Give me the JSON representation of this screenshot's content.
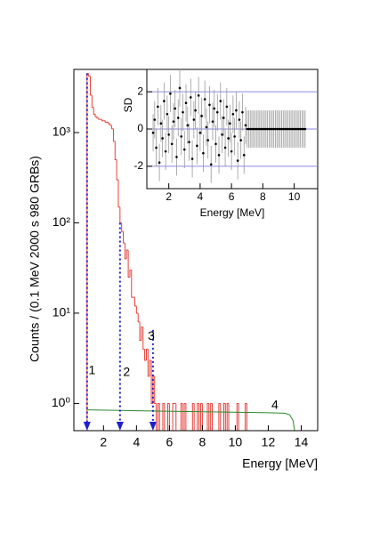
{
  "chart_data": [
    {
      "type": "histogram",
      "xlabel": "Energy [MeV]",
      "ylabel": "Counts / (0.1 MeV 2000 s 980 GRBs)",
      "bins": [
        1,
        1.1,
        1.2,
        1.3,
        1.4,
        1.5,
        1.6,
        1.7,
        1.8,
        1.9,
        2,
        2.1,
        2.2,
        2.3,
        2.4,
        2.5,
        2.6,
        2.7,
        2.8,
        2.9,
        3,
        3.1,
        3.2,
        3.3,
        3.4,
        3.5,
        3.6,
        3.7,
        3.8,
        3.9,
        4,
        4.1,
        4.2,
        4.3,
        4.4,
        4.5,
        4.6,
        4.7,
        4.8,
        4.9,
        5,
        5.1,
        5.2,
        5.3,
        5.4,
        5.5,
        5.6,
        5.7,
        5.8,
        5.9,
        6,
        6.1,
        6.2,
        6.3,
        6.4,
        6.5,
        6.6,
        6.7,
        6.8,
        6.9,
        7,
        7.1,
        7.2,
        7.3,
        7.4,
        7.5,
        7.6,
        7.7,
        7.8,
        7.9,
        8,
        8.1,
        8.2,
        8.3,
        8.4,
        8.5,
        8.6,
        8.7,
        8.8,
        8.9,
        9,
        9.1,
        9.2,
        9.3,
        9.4,
        9.5,
        9.6,
        9.7,
        9.8,
        9.9,
        10,
        10.1,
        10.2,
        10.3,
        10.4,
        10.5,
        10.6,
        10.7,
        10.8
      ],
      "values": [
        4500,
        4200,
        2600,
        1900,
        1600,
        1500,
        1450,
        1400,
        1400,
        1350,
        1350,
        1300,
        1300,
        1250,
        1200,
        1100,
        800,
        500,
        300,
        150,
        100,
        80,
        60,
        40,
        50,
        25,
        30,
        15,
        15,
        12,
        10,
        8,
        5,
        7,
        4,
        3,
        4,
        2,
        3,
        1,
        2,
        1,
        0,
        1,
        0,
        0,
        1,
        0,
        0,
        1,
        0,
        0,
        1,
        1,
        0,
        0,
        0,
        1,
        0,
        1,
        0,
        0,
        0,
        0,
        1,
        0,
        0,
        1,
        0,
        1,
        0,
        0,
        0,
        1,
        0,
        1,
        0,
        0,
        0,
        0,
        1,
        0,
        0,
        1,
        0,
        1,
        0,
        0,
        0,
        0,
        0,
        1,
        0,
        0,
        0,
        0,
        1,
        0
      ],
      "color": "#e8403a",
      "line": {
        "color": "#2a8a2a",
        "x": [
          1,
          4,
          8,
          12,
          13,
          13.3,
          13.5,
          13.6
        ],
        "values": [
          0.85,
          0.83,
          0.81,
          0.79,
          0.78,
          0.75,
          0.65,
          0.5
        ]
      },
      "thresholds": {
        "color": "#1f1fd0",
        "x": [
          1,
          3,
          5
        ],
        "values": [
          4500,
          100,
          6.5
        ]
      },
      "annotations": [
        {
          "text": "1",
          "x": 1.3,
          "y": 2.3
        },
        {
          "text": "2",
          "x": 3.4,
          "y": 2.2
        },
        {
          "text": "3",
          "x": 4.9,
          "y": 5.5
        },
        {
          "text": "4",
          "x": 12.4,
          "y": 0.95
        }
      ],
      "log_y": true,
      "xlim": [
        0.2,
        15
      ],
      "ylim": [
        0.5,
        5000
      ],
      "xticks": [
        2,
        4,
        6,
        8,
        10,
        12,
        14
      ],
      "yticks": [
        {
          "value": 1,
          "label": "10⁰"
        },
        {
          "value": 10,
          "label": "10¹"
        },
        {
          "value": 100,
          "label": "10²"
        },
        {
          "value": 1000,
          "label": "10³"
        }
      ]
    },
    {
      "type": "scatter",
      "xlabel": "Energy [MeV]",
      "ylabel": "SD",
      "x": [
        1,
        1.1,
        1.2,
        1.3,
        1.4,
        1.5,
        1.6,
        1.7,
        1.8,
        1.9,
        2,
        2.1,
        2.2,
        2.3,
        2.4,
        2.5,
        2.6,
        2.7,
        2.8,
        2.9,
        3,
        3.1,
        3.2,
        3.3,
        3.4,
        3.5,
        3.6,
        3.7,
        3.8,
        3.9,
        4,
        4.1,
        4.2,
        4.3,
        4.4,
        4.5,
        4.6,
        4.7,
        4.8,
        4.9,
        5,
        5.1,
        5.2,
        5.3,
        5.4,
        5.5,
        5.6,
        5.7,
        5.8,
        5.9,
        6,
        6.1,
        6.2,
        6.3,
        6.4,
        6.5,
        6.6,
        6.7,
        6.8,
        6.9,
        7,
        7.1,
        7.2,
        7.3,
        7.4,
        7.5,
        7.6,
        7.7,
        7.8,
        7.9,
        8,
        8.1,
        8.2,
        8.3,
        8.4,
        8.5,
        8.6,
        8.7,
        8.8,
        8.9,
        9,
        9.1,
        9.2,
        9.3,
        9.4,
        9.5,
        9.6,
        9.7,
        9.8,
        9.9,
        10,
        10.1,
        10.2,
        10.3,
        10.4,
        10.5,
        10.6,
        10.7
      ],
      "values": [
        -0.2,
        0.5,
        -1.0,
        1.2,
        -1.8,
        0.3,
        -0.5,
        1.5,
        -1.2,
        0.8,
        -0.3,
        1.9,
        -0.8,
        0.4,
        1.1,
        -1.5,
        0.6,
        2.2,
        -0.4,
        0.9,
        -1.1,
        1.4,
        0.2,
        -0.7,
        1.7,
        -1.6,
        0.5,
        1.0,
        -0.9,
        1.8,
        -0.2,
        0.7,
        -1.3,
        1.6,
        0.1,
        -0.6,
        1.3,
        -1.9,
        0.4,
        1.1,
        -0.8,
        0.9,
        -1.4,
        1.5,
        -0.3,
        0.6,
        -1.0,
        1.2,
        -0.5,
        0.3,
        -1.2,
        0.8,
        -0.4,
        1.0,
        -1.7,
        0.5,
        -0.6,
        0.9,
        -1.4,
        0.2,
        0,
        0,
        0,
        0,
        0,
        0,
        0,
        0,
        0,
        0,
        0,
        0,
        0,
        0,
        0,
        0,
        0,
        0,
        0,
        0,
        0,
        0,
        0,
        0,
        0,
        0,
        0,
        0,
        0,
        0,
        0,
        0,
        0,
        0,
        0,
        0,
        0,
        0
      ],
      "errors": [
        1,
        1,
        1,
        1,
        1,
        1,
        1,
        1,
        1,
        1,
        1,
        1,
        1,
        1,
        1,
        1,
        1,
        1,
        1,
        1,
        1,
        1,
        1,
        1,
        1,
        1,
        1,
        1,
        1,
        1,
        1,
        1,
        1,
        1,
        1,
        1,
        1,
        1,
        1,
        1,
        1,
        1,
        1,
        1,
        1,
        1,
        1,
        1,
        1,
        1,
        1,
        1,
        1,
        1,
        1,
        1,
        1,
        1,
        1,
        1,
        1,
        1,
        1,
        1,
        1,
        1,
        1,
        1,
        1,
        1,
        1,
        1,
        1,
        1,
        1,
        1,
        1,
        1,
        1,
        1,
        1,
        1,
        1,
        1,
        1,
        1,
        1,
        1,
        1,
        1,
        1,
        1,
        1,
        1,
        1,
        1,
        1,
        1
      ],
      "color": "#000000",
      "error_color": "#999999",
      "grid": true,
      "grid_color": "#8a8ae0",
      "xlim": [
        0.6,
        11.5
      ],
      "ylim": [
        -3.2,
        3.2
      ],
      "xticks": [
        2,
        4,
        6,
        8,
        10
      ],
      "yticks": [
        -2,
        0,
        2
      ]
    }
  ]
}
